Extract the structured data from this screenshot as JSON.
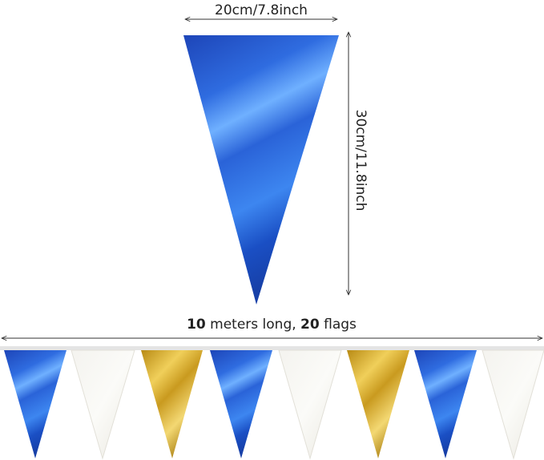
{
  "dimensions": {
    "width": "20cm/7.8inch",
    "height": "30cm/11.8inch"
  },
  "banner": {
    "length_label": [
      "10",
      " meters long, ",
      "20",
      " flags"
    ]
  }
}
